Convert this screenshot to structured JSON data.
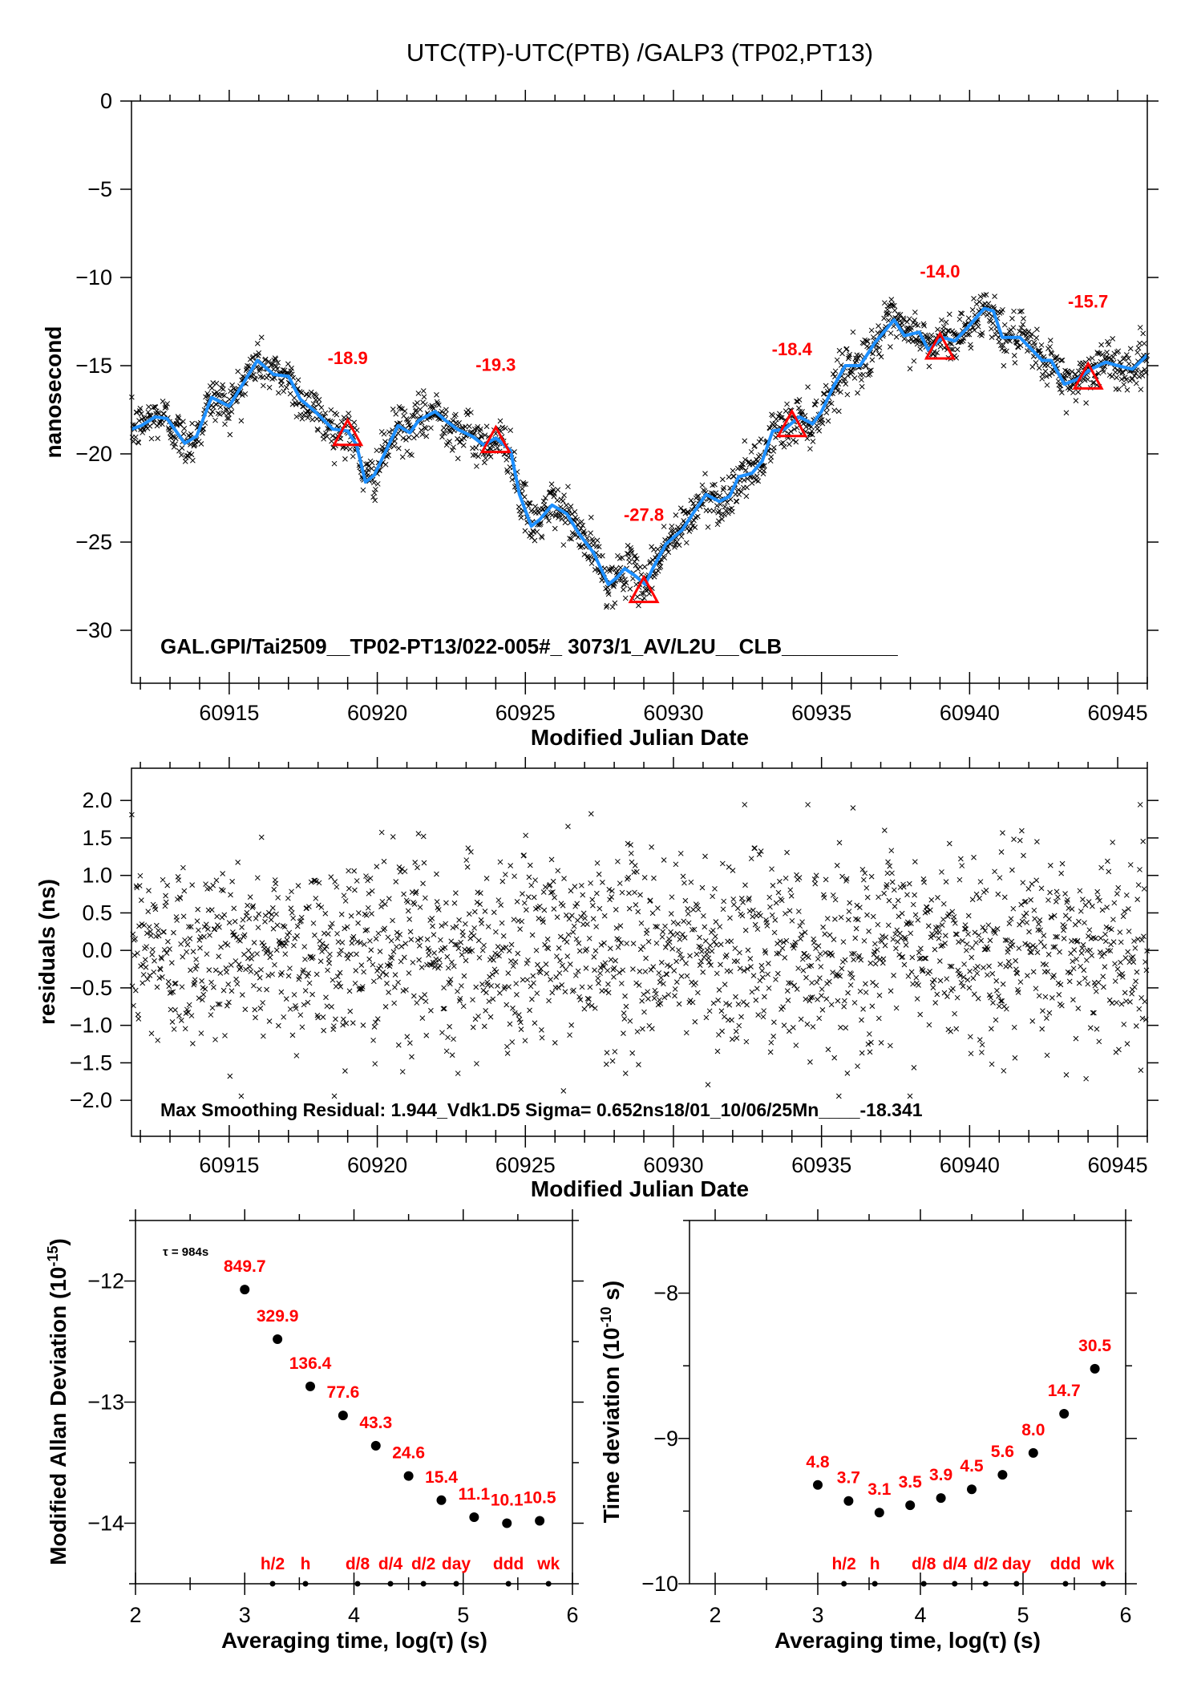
{
  "chart_data": [
    {
      "type": "scatter",
      "title": "UTC(TP)-UTC(PTB)  /GALP3  (TP02,PT13)",
      "xlabel": "Modified Julian Date",
      "ylabel": "nanosecond",
      "xlim": [
        60911.7,
        60946.0
      ],
      "ylim": [
        -33,
        0
      ],
      "grid": false,
      "xticks": [
        60915,
        60920,
        60925,
        60930,
        60935,
        60940,
        60945
      ],
      "xtick_labels": [
        "60915",
        "60920",
        "60925",
        "60930",
        "60935",
        "60940",
        "60945"
      ],
      "yticks": [
        0,
        -5,
        -10,
        -15,
        -20,
        -25,
        -30
      ],
      "ytick_labels": [
        "0",
        "−5",
        "−10",
        "−15",
        "−20",
        "−25",
        "−30"
      ],
      "annotation": "GAL.GPI/Tai2509__TP02-PT13/022-005#_  3073/1_AV/L2U__CLB__________",
      "smoothed_series": {
        "color": "#1e90ff",
        "x": [
          60911.7,
          60912.03,
          60912.5,
          60912.9,
          60913.5,
          60913.9,
          60914.4,
          60915,
          60915.4,
          60915.95,
          60916.5,
          60917,
          60917.4,
          60917.9,
          60918.5,
          60919,
          60919.3,
          60919.6,
          60919.9,
          60920.3,
          60920.7,
          60921.1,
          60921.4,
          60921.95,
          60922.3,
          60922.7,
          60923.2,
          60923.6,
          60924,
          60924.5,
          60924.8,
          60925.2,
          60925.5,
          60925.9,
          60926.4,
          60926.8,
          60927.3,
          60927.8,
          60928.1,
          60928.35,
          60928.7,
          60929.05,
          60929.3,
          60929.75,
          60930.3,
          60930.65,
          60931.1,
          60931.55,
          60931.9,
          60932.2,
          60932.65,
          60933,
          60933.35,
          60933.75,
          60934.25,
          60934.7,
          60935,
          60935.4,
          60935.8,
          60936.3,
          60936.8,
          60937.45,
          60937.8,
          60938.3,
          60938.6,
          60939.1,
          60939.5,
          60939.9,
          60940.5,
          60940.8,
          60941.1,
          60941.7,
          60942.05,
          60942.45,
          60942.75,
          60943.2,
          60943.6,
          60944.1,
          60944.6,
          60945,
          60945.5,
          60946
        ],
        "y": [
          -18.6,
          -18.4,
          -17.9,
          -18.0,
          -19.4,
          -19.0,
          -16.8,
          -17.3,
          -16.2,
          -14.7,
          -15.5,
          -15.6,
          -16.9,
          -17.6,
          -18.6,
          -18.7,
          -19.5,
          -21.6,
          -21.2,
          -19.8,
          -18.4,
          -18.8,
          -18.1,
          -17.6,
          -18.1,
          -18.6,
          -19.0,
          -19.5,
          -19.1,
          -19.8,
          -22.3,
          -24.1,
          -23.7,
          -22.9,
          -23.4,
          -24.5,
          -25.6,
          -27.4,
          -27.0,
          -26.5,
          -26.9,
          -27.4,
          -26.5,
          -25.1,
          -24.3,
          -23.4,
          -22.3,
          -22.7,
          -22.4,
          -21.3,
          -21.1,
          -20.4,
          -18.7,
          -18.6,
          -17.9,
          -18.3,
          -17.6,
          -16.2,
          -15.0,
          -15.0,
          -13.7,
          -12.4,
          -13.3,
          -13.1,
          -14.1,
          -13.4,
          -13.6,
          -12.9,
          -11.75,
          -11.9,
          -13.4,
          -13.4,
          -14.0,
          -14.7,
          -14.7,
          -16.05,
          -15.8,
          -15.2,
          -14.8,
          -15.0,
          -15.2,
          -14.4
        ]
      },
      "measurements_color": "#000000",
      "triangle_markers": {
        "color": "#ff0000",
        "x": [
          60919,
          60924,
          60929,
          60934,
          60939,
          60944
        ],
        "y": [
          -18.9,
          -19.3,
          -27.8,
          -18.4,
          -14.0,
          -15.7
        ],
        "labels": [
          "-18.9",
          "-19.3",
          "-27.8",
          "-18.4",
          "-14.0",
          "-15.7"
        ]
      }
    },
    {
      "type": "scatter",
      "xlabel": "Modified Julian Date",
      "ylabel": "residuals (ns)",
      "xlim": [
        60911.7,
        60946.0
      ],
      "ylim": [
        -2.48,
        2.43
      ],
      "grid": false,
      "xticks": [
        60915,
        60920,
        60925,
        60930,
        60935,
        60940,
        60945
      ],
      "xtick_labels": [
        "60915",
        "60920",
        "60925",
        "60930",
        "60935",
        "60940",
        "60945"
      ],
      "yticks": [
        2.0,
        1.5,
        1.0,
        0.5,
        0.0,
        -0.5,
        -1.0,
        -1.5,
        -2.0
      ],
      "ytick_labels": [
        "2.0",
        "1.5",
        "1.0",
        "0.5",
        "0.0",
        "−0.5",
        "−1.0",
        "−1.5",
        "−2.0"
      ],
      "annotation": "Max Smoothing Residual: 1.944_Vdk1.D5  Sigma= 0.652ns18/01_10/06/25Mn____-18.341",
      "sigma_ns": 0.652,
      "max_residual_ns": 1.944
    },
    {
      "type": "scatter",
      "xlabel": "Averaging time, log(τ) (s)",
      "ylabel": {
        "main": "Modified Allan Deviation (10",
        "exponent": "-15",
        "tail": ")"
      },
      "xlim": [
        2,
        6
      ],
      "ylim": [
        -14.5,
        -11.5
      ],
      "xticks": [
        2,
        3,
        4,
        5,
        6
      ],
      "xtick_labels": [
        "2",
        "3",
        "4",
        "5",
        "6"
      ],
      "yticks": [
        -12,
        -13,
        -14
      ],
      "ytick_labels": [
        "−12",
        "−13",
        "−14"
      ],
      "tau_note": "τ = 984s",
      "x": [
        3.0,
        3.3,
        3.6,
        3.9,
        4.2,
        4.5,
        4.8,
        5.1,
        5.4,
        5.7
      ],
      "y": [
        -12.07,
        -12.48,
        -12.87,
        -13.11,
        -13.36,
        -13.61,
        -13.81,
        -13.95,
        -14.0,
        -13.98
      ],
      "point_labels": [
        "849.7",
        "329.9",
        "136.4",
        "77.6",
        "43.3",
        "24.6",
        "15.4",
        "11.1",
        "10.1",
        "10.5"
      ],
      "interval_markers": {
        "x": [
          3.255,
          3.556,
          4.033,
          4.334,
          4.636,
          4.936,
          5.414,
          5.781
        ],
        "labels": [
          "h/2",
          "h",
          "d/8",
          "d/4",
          "d/2",
          "day",
          "ddd",
          "wk"
        ]
      },
      "label_color": "#ff0000"
    },
    {
      "type": "scatter",
      "xlabel": "Averaging time, log(τ) (s)",
      "ylabel": {
        "main": "Time deviation (10",
        "exponent": "-10",
        "tail": " s)"
      },
      "xlim": [
        1.75,
        6
      ],
      "ylim": [
        -10,
        -7.5
      ],
      "xticks": [
        2,
        3,
        4,
        5,
        6
      ],
      "xtick_labels": [
        "2",
        "3",
        "4",
        "5",
        "6"
      ],
      "yticks": [
        -8,
        -9,
        -10
      ],
      "ytick_labels": [
        "−8",
        "−9",
        "−10"
      ],
      "x": [
        3.0,
        3.3,
        3.6,
        3.9,
        4.2,
        4.5,
        4.8,
        5.1,
        5.4,
        5.7
      ],
      "y": [
        -9.32,
        -9.43,
        -9.51,
        -9.46,
        -9.41,
        -9.35,
        -9.25,
        -9.1,
        -8.83,
        -8.52
      ],
      "point_labels": [
        "4.8",
        "3.7",
        "3.1",
        "3.5",
        "3.9",
        "4.5",
        "5.6",
        "8.0",
        "14.7",
        "30.5"
      ],
      "interval_markers": {
        "x": [
          3.255,
          3.556,
          4.033,
          4.334,
          4.636,
          4.936,
          5.414,
          5.781
        ],
        "labels": [
          "h/2",
          "h",
          "d/8",
          "d/4",
          "d/2",
          "day",
          "ddd",
          "wk"
        ]
      },
      "label_color": "#ff0000"
    }
  ]
}
